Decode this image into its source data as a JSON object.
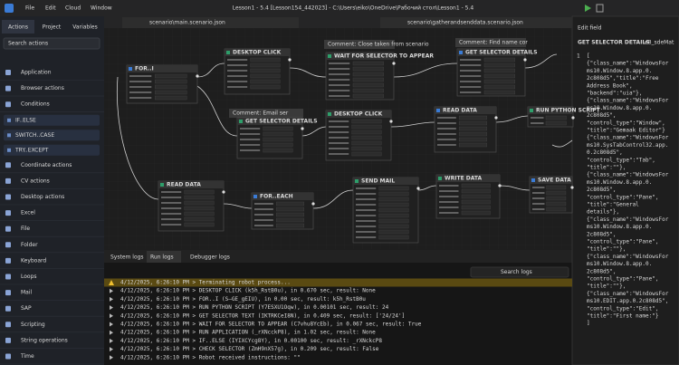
{
  "window_title": "Lesson1 - 5.4 [Lesson154_442023] - C:\\Users\\eiko\\OneDrive\\Рабочий стол\\Lesson1 - 5.4",
  "menu": [
    "File",
    "Edit",
    "Cloud",
    "Window"
  ],
  "sidebar": {
    "tabs": [
      "Actions",
      "Project",
      "Variables"
    ],
    "search": "Search actions",
    "items": [
      "Application",
      "Browser actions",
      "Conditions",
      "Coordinate actions",
      "CV actions",
      "Desktop actions",
      "Excel",
      "File",
      "Folder",
      "Keyboard",
      "Loops",
      "Mail",
      "SAP",
      "Scripting",
      "String operations",
      "Time"
    ],
    "conditions_children": [
      "IF..ELSE",
      "SWITCH..CASE",
      "TRY..EXCEPT"
    ]
  },
  "canvas": {
    "tabs": [
      "scenario\\main.scenario.json",
      "scenario\\gatherandsenddata.scenario.json"
    ],
    "nodes": [
      "FOR..I",
      "DESKTOP CLICK",
      "WAIT FOR SELECTOR TO APPEAR",
      "GET SELECTOR DETAILS",
      "GET SELECTOR DETAILS",
      "DESKTOP CLICK",
      "READ DATA",
      "RUN PYTHON SCRIPT",
      "READ DATA",
      "FOR..EACH",
      "SEND MAIL",
      "WRITE DATA",
      "SAVE DATA"
    ],
    "comments": [
      "Comment: Close taken from scenario",
      "Comment: Find name cor",
      "Comment: Email ser"
    ]
  },
  "logs": {
    "tabs": [
      "System logs",
      "Run logs",
      "Debugger logs"
    ],
    "search": "Search logs",
    "lines": [
      "4/12/2025, 6:26:10 PM > Terminating robot process...",
      "4/12/2025, 6:26:10 PM > DESKTOP CLICK (k5h_RstB0u), in 0.670 sec, result:   None",
      "4/12/2025, 6:26:10 PM > FOR..I (S—GE_gEIU), in 0.00 sec, result:   k5h_RstB0u",
      "4/12/2025, 6:26:10 PM > RUN PYTHON SCRIPT (Y7ESXU1Oqw), in 0.00101 sec, result:   24",
      "4/12/2025, 6:26:10 PM > GET SELECTOR TEXT (IKTRKCeI8N), in 0.409 sec, result:   ['24/24']",
      "4/12/2025, 6:26:10 PM > WAIT FOR SELECTOR TO APPEAR (C7vhu8YcEb), in 0.067 sec, result:   True",
      "4/12/2025, 6:26:10 PM > RUN APPLICATION (_rXNcckP8), in 1.02 sec, result:   None",
      "4/12/2025, 6:26:10 PM > IF..ELSE (IYIXCYcg8Y), in 0.00100 sec, result:   _rXNckcP8",
      "4/12/2025, 6:26:10 PM > CHECK SELECTOR (ZmH9nX57g), in 0.209 sec, result:   False",
      "4/12/2025, 6:26:10 PM > Robot received instructions:  \"\""
    ]
  },
  "editor": {
    "header": "Edit field",
    "title": "GET SELECTOR DETAILS",
    "id": "e8_sdeMat",
    "lines": [
      "[",
      "  {\"class_name\":\"WindowsFor",
      "ms10.Window.8.app.0.",
      "2c808d5\",\"title\":\"Free",
      "Address Book\",",
      "\"backend\":\"uia\"},",
      "  {\"class_name\":\"WindowsFor",
      "ms10.Window.8.app.0.",
      "2c808d5\",",
      "\"control_type\":\"Window\",",
      "\"title\":\"Gemaak Editor\"}",
      "  {\"class_name\":\"WindowsFor",
      "ms10.SysTabControl32.app.",
      "0.2c808d5\",",
      "\"control_type\":\"Tab\",",
      "\"title\":\"\"},",
      "  {\"class_name\":\"WindowsFor",
      "ms10.Window.8.app.0.",
      "2c808d5\",",
      "\"control_type\":\"Pane\",",
      "\"title\":\"General",
      "details\"},",
      "  {\"class_name\":\"WindowsFor",
      "ms10.Window.8.app.0.",
      "2c808d5\",",
      "\"control_type\":\"Pane\",",
      "\"title\":\"\"},",
      "  {\"class_name\":\"WindowsFor",
      "ms10.Window.8.app.0.",
      "2c808d5\",",
      "\"control_type\":\"Pane\",",
      "\"title\":\"\"},",
      "  {\"class_name\":\"WindowsFor",
      "ms10.EDIT.app.0.2c808d5\",",
      "\"control_type\":\"Edit\",",
      "\"title\":\"First name:\"}",
      "]"
    ]
  }
}
